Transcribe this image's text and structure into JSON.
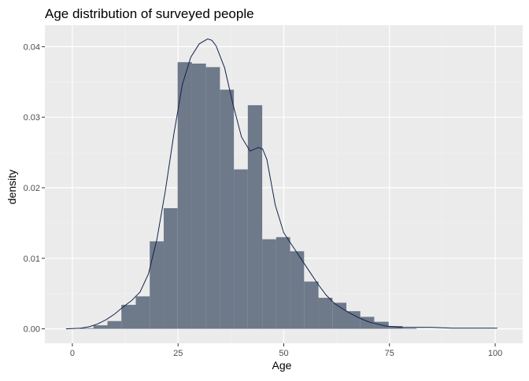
{
  "chart_data": {
    "type": "histogram",
    "title": "Age distribution of surveyed people",
    "xlabel": "Age",
    "ylabel": "density",
    "xlim": [
      -6.5,
      106.5
    ],
    "ylim": [
      -0.00205,
      0.04305
    ],
    "x_ticks": [
      0,
      25,
      50,
      75,
      100
    ],
    "x_tick_labels": [
      "0",
      "25",
      "50",
      "75",
      "100"
    ],
    "y_ticks": [
      0.0,
      0.01,
      0.02,
      0.03,
      0.04
    ],
    "y_tick_labels": [
      "0.00",
      "0.01",
      "0.02",
      "0.03",
      "0.04"
    ],
    "grid": true,
    "bin_width": 3.33,
    "bins": [
      {
        "x0": 1.7,
        "x1": 5.0,
        "density": 0.0001
      },
      {
        "x0": 5.0,
        "x1": 8.3,
        "density": 0.0005
      },
      {
        "x0": 8.3,
        "x1": 11.6,
        "density": 0.0011
      },
      {
        "x0": 11.6,
        "x1": 15.0,
        "density": 0.0034
      },
      {
        "x0": 15.0,
        "x1": 18.3,
        "density": 0.0046
      },
      {
        "x0": 18.3,
        "x1": 21.6,
        "density": 0.0124
      },
      {
        "x0": 21.6,
        "x1": 24.9,
        "density": 0.0171
      },
      {
        "x0": 24.9,
        "x1": 28.3,
        "density": 0.0378
      },
      {
        "x0": 28.3,
        "x1": 31.6,
        "density": 0.0376
      },
      {
        "x0": 31.6,
        "x1": 34.9,
        "density": 0.0371
      },
      {
        "x0": 34.9,
        "x1": 38.2,
        "density": 0.0339
      },
      {
        "x0": 38.2,
        "x1": 41.5,
        "density": 0.0226
      },
      {
        "x0": 41.5,
        "x1": 44.9,
        "density": 0.0317
      },
      {
        "x0": 44.9,
        "x1": 48.2,
        "density": 0.0127
      },
      {
        "x0": 48.2,
        "x1": 51.5,
        "density": 0.013
      },
      {
        "x0": 51.5,
        "x1": 54.8,
        "density": 0.011
      },
      {
        "x0": 54.8,
        "x1": 58.2,
        "density": 0.0067
      },
      {
        "x0": 58.2,
        "x1": 61.5,
        "density": 0.0044
      },
      {
        "x0": 61.5,
        "x1": 64.8,
        "density": 0.0037
      },
      {
        "x0": 64.8,
        "x1": 68.1,
        "density": 0.0025
      },
      {
        "x0": 68.1,
        "x1": 71.4,
        "density": 0.0017
      },
      {
        "x0": 71.4,
        "x1": 74.8,
        "density": 0.001
      },
      {
        "x0": 74.8,
        "x1": 78.1,
        "density": 0.0004
      },
      {
        "x0": 78.1,
        "x1": 81.4,
        "density": 0.0001
      }
    ],
    "density_curve": {
      "x": [
        -1.5,
        2,
        4,
        6,
        8,
        10,
        12,
        14,
        16,
        18,
        20,
        22,
        24,
        26,
        28,
        30,
        32,
        33,
        34,
        36,
        38,
        40,
        42,
        44,
        45,
        46,
        48,
        50,
        52,
        54,
        56,
        58,
        60,
        62,
        64,
        66,
        68,
        70,
        72,
        74,
        76,
        78,
        80,
        85,
        90,
        95,
        100.5
      ],
      "y": [
        0.0,
        0.0001,
        0.0003,
        0.0007,
        0.0013,
        0.0021,
        0.0031,
        0.004,
        0.0052,
        0.0078,
        0.0127,
        0.0196,
        0.0276,
        0.0346,
        0.0385,
        0.0404,
        0.0411,
        0.0409,
        0.0401,
        0.037,
        0.0318,
        0.0272,
        0.0252,
        0.0257,
        0.0255,
        0.024,
        0.0175,
        0.0136,
        0.0118,
        0.01,
        0.0082,
        0.0064,
        0.0048,
        0.0036,
        0.0028,
        0.0021,
        0.0015,
        0.001,
        0.0007,
        0.0004,
        0.0003,
        0.0002,
        0.0002,
        0.0002,
        0.0001,
        0.0001,
        0.0001
      ]
    },
    "colors": {
      "panel_background": "#ebebeb",
      "grid_major": "#ffffff",
      "grid_minor": "#f2f2f2",
      "bar_fill": "#6e798a",
      "density_line": "#13234d"
    }
  }
}
